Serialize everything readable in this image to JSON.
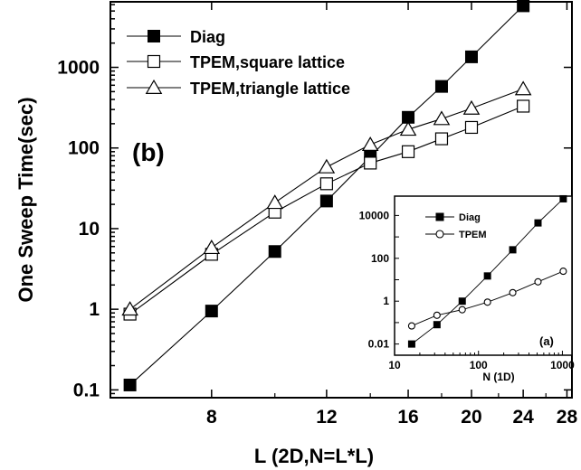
{
  "chart_data": [
    {
      "type": "line",
      "panel_label": "(b)",
      "xlabel": "L (2D,N=L*L)",
      "ylabel": "One Sweep Time(sec)",
      "x_scale": "log",
      "y_scale": "log",
      "xlim": [
        5.6,
        28.5
      ],
      "ylim": [
        0.08,
        6500
      ],
      "x_ticks": [
        8,
        12,
        16,
        20,
        24,
        28
      ],
      "x_tick_labels": [
        "8",
        "12",
        "16",
        "20",
        "24",
        "28"
      ],
      "y_ticks": [
        0.1,
        1,
        10,
        100,
        1000
      ],
      "y_tick_labels": [
        "0.1",
        "1",
        "10",
        "100",
        "1000"
      ],
      "legend_placement": "top-left",
      "series": [
        {
          "name": "Diag",
          "marker": "filled-square",
          "x": [
            6,
            8,
            10,
            12,
            14,
            16,
            18,
            20,
            24
          ],
          "y": [
            0.115,
            0.95,
            5.2,
            22,
            78,
            240,
            580,
            1350,
            5800
          ]
        },
        {
          "name": "TPEM,square lattice",
          "marker": "open-square",
          "x": [
            6,
            8,
            10,
            12,
            14,
            16,
            18,
            20,
            24
          ],
          "y": [
            0.87,
            4.8,
            16,
            36,
            65,
            90,
            130,
            180,
            330
          ]
        },
        {
          "name": "TPEM,triangle lattice",
          "marker": "open-triangle",
          "x": [
            6,
            8,
            10,
            12,
            14,
            16,
            18,
            20,
            24
          ],
          "y": [
            1.0,
            5.8,
            21,
            58,
            110,
            170,
            230,
            310,
            540
          ]
        }
      ]
    },
    {
      "type": "line",
      "panel_label": "(a)",
      "xlabel": "N (1D)",
      "ylabel": "",
      "x_scale": "log",
      "y_scale": "log",
      "xlim": [
        10,
        1300
      ],
      "ylim": [
        0.003,
        80000
      ],
      "x_ticks": [
        10,
        100,
        1000
      ],
      "x_tick_labels": [
        "10",
        "100",
        "1000"
      ],
      "y_ticks": [
        0.01,
        1,
        100,
        10000
      ],
      "y_tick_labels": [
        "0.01",
        "1",
        "100",
        "10000"
      ],
      "legend_placement": "top-left",
      "series": [
        {
          "name": "Diag",
          "marker": "filled-square",
          "x": [
            16,
            32,
            64,
            128,
            256,
            512,
            1024
          ],
          "y": [
            0.01,
            0.08,
            1.0,
            15,
            250,
            4500,
            60000
          ]
        },
        {
          "name": "TPEM",
          "marker": "open-circle",
          "x": [
            16,
            32,
            64,
            128,
            256,
            512,
            1024
          ],
          "y": [
            0.07,
            0.22,
            0.4,
            0.9,
            2.5,
            8,
            25
          ]
        }
      ]
    }
  ]
}
